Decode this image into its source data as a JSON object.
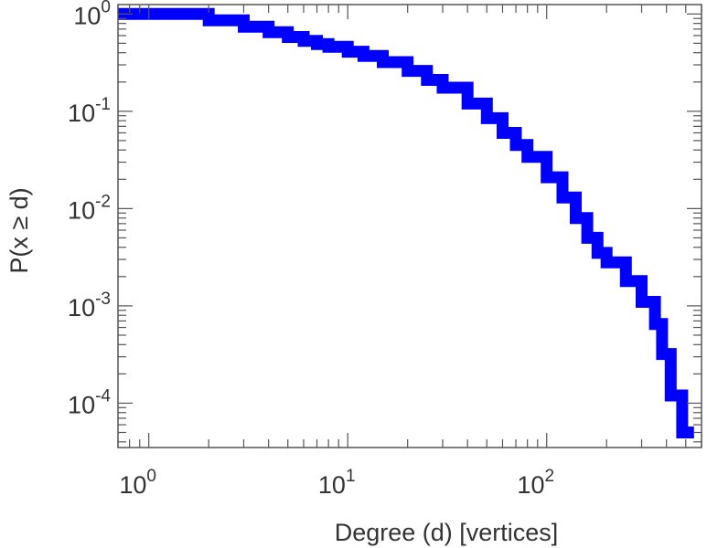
{
  "chart_data": {
    "type": "line",
    "step": true,
    "xscale": "log",
    "yscale": "log",
    "xlim": [
      0.7,
      600
    ],
    "ylim": [
      3.5e-05,
      1.25
    ],
    "xlabel": "Degree (d) [vertices]",
    "ylabel": "P(x ≥ d)",
    "grid": false,
    "x_ticks": [
      {
        "value": 1,
        "base": "10",
        "exp": "0"
      },
      {
        "value": 10,
        "base": "10",
        "exp": "1"
      },
      {
        "value": 100,
        "base": "10",
        "exp": "2"
      }
    ],
    "y_ticks": [
      {
        "value": 1,
        "base": "10",
        "exp": "0"
      },
      {
        "value": 0.1,
        "base": "10",
        "exp": "-1"
      },
      {
        "value": 0.01,
        "base": "10",
        "exp": "-2"
      },
      {
        "value": 0.001,
        "base": "10",
        "exp": "-3"
      },
      {
        "value": 0.0001,
        "base": "10",
        "exp": "-4"
      }
    ],
    "series": [
      {
        "color": "#0000ff",
        "x": [
          1,
          2,
          3,
          4,
          5,
          6,
          7,
          8,
          10,
          12,
          15,
          20,
          25,
          30,
          40,
          50,
          60,
          70,
          80,
          100,
          120,
          140,
          160,
          180,
          200,
          250,
          300,
          350,
          380,
          420,
          480,
          550
        ],
        "y": [
          1.0,
          0.86,
          0.74,
          0.65,
          0.58,
          0.53,
          0.49,
          0.46,
          0.41,
          0.37,
          0.32,
          0.26,
          0.21,
          0.175,
          0.12,
          0.085,
          0.06,
          0.045,
          0.034,
          0.021,
          0.013,
          0.008,
          0.005,
          0.0035,
          0.0028,
          0.0018,
          0.0011,
          0.00065,
          0.00032,
          0.00012,
          5e-05,
          5e-05
        ]
      }
    ]
  }
}
